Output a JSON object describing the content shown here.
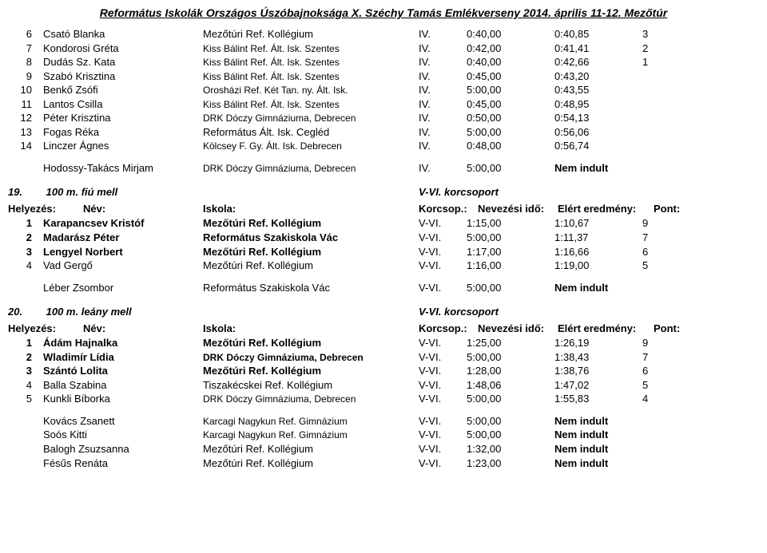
{
  "title": "Református Iskolák Országos Úszóbajnoksága X. Széchy Tamás Emlékverseny 2014. április 11-12. Mezőtúr",
  "section1_rows": [
    {
      "rank": "6",
      "name": "Csató Blanka",
      "school": "Mezőtúri Ref. Kollégium",
      "group": "IV.",
      "entry": "0:40,00",
      "result": "0:40,85",
      "point": "3",
      "schoolSmall": false
    },
    {
      "rank": "7",
      "name": "Kondorosi Gréta",
      "school": "Kiss Bálint Ref. Ált. Isk. Szentes",
      "group": "IV.",
      "entry": "0:42,00",
      "result": "0:41,41",
      "point": "2",
      "schoolSmall": true
    },
    {
      "rank": "8",
      "name": "Dudás Sz. Kata",
      "school": "Kiss Bálint Ref. Ált. Isk. Szentes",
      "group": "IV.",
      "entry": "0:40,00",
      "result": "0:42,66",
      "point": "1",
      "schoolSmall": true
    },
    {
      "rank": "9",
      "name": "Szabó Krisztina",
      "school": "Kiss Bálint Ref. Ált. Isk. Szentes",
      "group": "IV.",
      "entry": "0:45,00",
      "result": "0:43,20",
      "point": "",
      "schoolSmall": true
    },
    {
      "rank": "10",
      "name": "Benkő Zsófi",
      "school": "Orosházi Ref. Két Tan. ny. Ált. Isk.",
      "group": "IV.",
      "entry": "5:00,00",
      "result": "0:43,55",
      "point": "",
      "schoolSmall": true
    },
    {
      "rank": "11",
      "name": "Lantos Csilla",
      "school": "Kiss Bálint Ref. Ált. Isk. Szentes",
      "group": "IV.",
      "entry": "0:45,00",
      "result": "0:48,95",
      "point": "",
      "schoolSmall": true
    },
    {
      "rank": "12",
      "name": "Péter Krisztina",
      "school": "DRK Dóczy Gimnáziuma, Debrecen",
      "group": "IV.",
      "entry": "0:50,00",
      "result": "0:54,13",
      "point": "",
      "schoolSmall": true
    },
    {
      "rank": "13",
      "name": "Fogas Réka",
      "school": "Református Ált. Isk. Cegléd",
      "group": "IV.",
      "entry": "5:00,00",
      "result": "0:56,06",
      "point": "",
      "schoolSmall": false
    },
    {
      "rank": "14",
      "name": "Linczer Ágnes",
      "school": "Kölcsey F. Gy. Ált. Isk. Debrecen",
      "group": "IV.",
      "entry": "0:48,00",
      "result": "0:56,74",
      "point": "",
      "schoolSmall": true
    }
  ],
  "section1_extras": [
    {
      "name": "Hodossy-Takács Mirjam",
      "school": "DRK Dóczy Gimnáziuma, Debrecen",
      "group": "IV.",
      "entry": "5:00,00",
      "result": "Nem indult",
      "schoolSmall": true
    }
  ],
  "event19": {
    "num": "19.",
    "title": "100 m. fiú mell",
    "group": "V-VI. korcsoport"
  },
  "header_labels": {
    "rank": "Helyezés:",
    "name": "Név:",
    "school": "Iskola:",
    "group": "Korcsop.:",
    "entry": "Nevezési idő:",
    "result": "Elért eredmény:",
    "point": "Pont:"
  },
  "section19_rows": [
    {
      "rank": "1",
      "name": "Karapancsev Kristóf",
      "school": "Mezőtúri Ref. Kollégium",
      "group": "V-VI.",
      "entry": "1:15,00",
      "result": "1:10,67",
      "point": "9",
      "bold": true
    },
    {
      "rank": "2",
      "name": "Madarász Péter",
      "school": "Református Szakiskola Vác",
      "group": "V-VI.",
      "entry": "5:00,00",
      "result": "1:11,37",
      "point": "7",
      "bold": true
    },
    {
      "rank": "3",
      "name": "Lengyel Norbert",
      "school": "Mezőtúri Ref. Kollégium",
      "group": "V-VI.",
      "entry": "1:17,00",
      "result": "1:16,66",
      "point": "6",
      "bold": true
    },
    {
      "rank": "4",
      "name": "Vad Gergő",
      "school": "Mezőtúri Ref. Kollégium",
      "group": "V-VI.",
      "entry": "1:16,00",
      "result": "1:19,00",
      "point": "5",
      "bold": false
    }
  ],
  "section19_extras": [
    {
      "name": "Léber Zsombor",
      "school": "Református Szakiskola Vác",
      "group": "V-VI.",
      "entry": "5:00,00",
      "result": "Nem indult",
      "schoolSmall": false
    }
  ],
  "event20": {
    "num": "20.",
    "title": "100 m. leány mell",
    "group": "V-VI. korcsoport"
  },
  "section20_rows": [
    {
      "rank": "1",
      "name": "Ádám Hajnalka",
      "school": "Mezőtúri Ref. Kollégium",
      "group": "V-VI.",
      "entry": "1:25,00",
      "result": "1:26,19",
      "point": "9",
      "bold": true,
      "schoolSmall": false
    },
    {
      "rank": "2",
      "name": "Wladimír Lídia",
      "school": "DRK Dóczy Gimnáziuma, Debrecen",
      "group": "V-VI.",
      "entry": "5:00,00",
      "result": "1:38,43",
      "point": "7",
      "bold": true,
      "schoolSmall": true
    },
    {
      "rank": "3",
      "name": "Szántó Lolita",
      "school": "Mezőtúri Ref. Kollégium",
      "group": "V-VI.",
      "entry": "1:28,00",
      "result": "1:38,76",
      "point": "6",
      "bold": true,
      "schoolSmall": false
    },
    {
      "rank": "4",
      "name": "Balla Szabina",
      "school": "Tiszakécskei Ref. Kollégium",
      "group": "V-VI.",
      "entry": "1:48,06",
      "result": "1:47,02",
      "point": "5",
      "bold": false,
      "schoolSmall": false
    },
    {
      "rank": "5",
      "name": "Kunkli Bíborka",
      "school": "DRK Dóczy Gimnáziuma, Debrecen",
      "group": "V-VI.",
      "entry": "5:00,00",
      "result": "1:55,83",
      "point": "4",
      "bold": false,
      "schoolSmall": true
    }
  ],
  "section20_extras": [
    {
      "name": "Kovács Zsanett",
      "school": "Karcagi Nagykun Ref. Gimnázium",
      "group": "V-VI.",
      "entry": "5:00,00",
      "result": "Nem indult",
      "schoolSmall": true
    },
    {
      "name": "Soós Kitti",
      "school": "Karcagi Nagykun Ref. Gimnázium",
      "group": "V-VI.",
      "entry": "5:00,00",
      "result": "Nem indult",
      "schoolSmall": true
    },
    {
      "name": "Balogh Zsuzsanna",
      "school": "Mezőtúri Ref. Kollégium",
      "group": "V-VI.",
      "entry": "1:32,00",
      "result": "Nem indult",
      "schoolSmall": false
    },
    {
      "name": "Fésűs Renáta",
      "school": "Mezőtúri Ref. Kollégium",
      "group": "V-VI.",
      "entry": "1:23,00",
      "result": "Nem indult",
      "schoolSmall": false
    }
  ]
}
